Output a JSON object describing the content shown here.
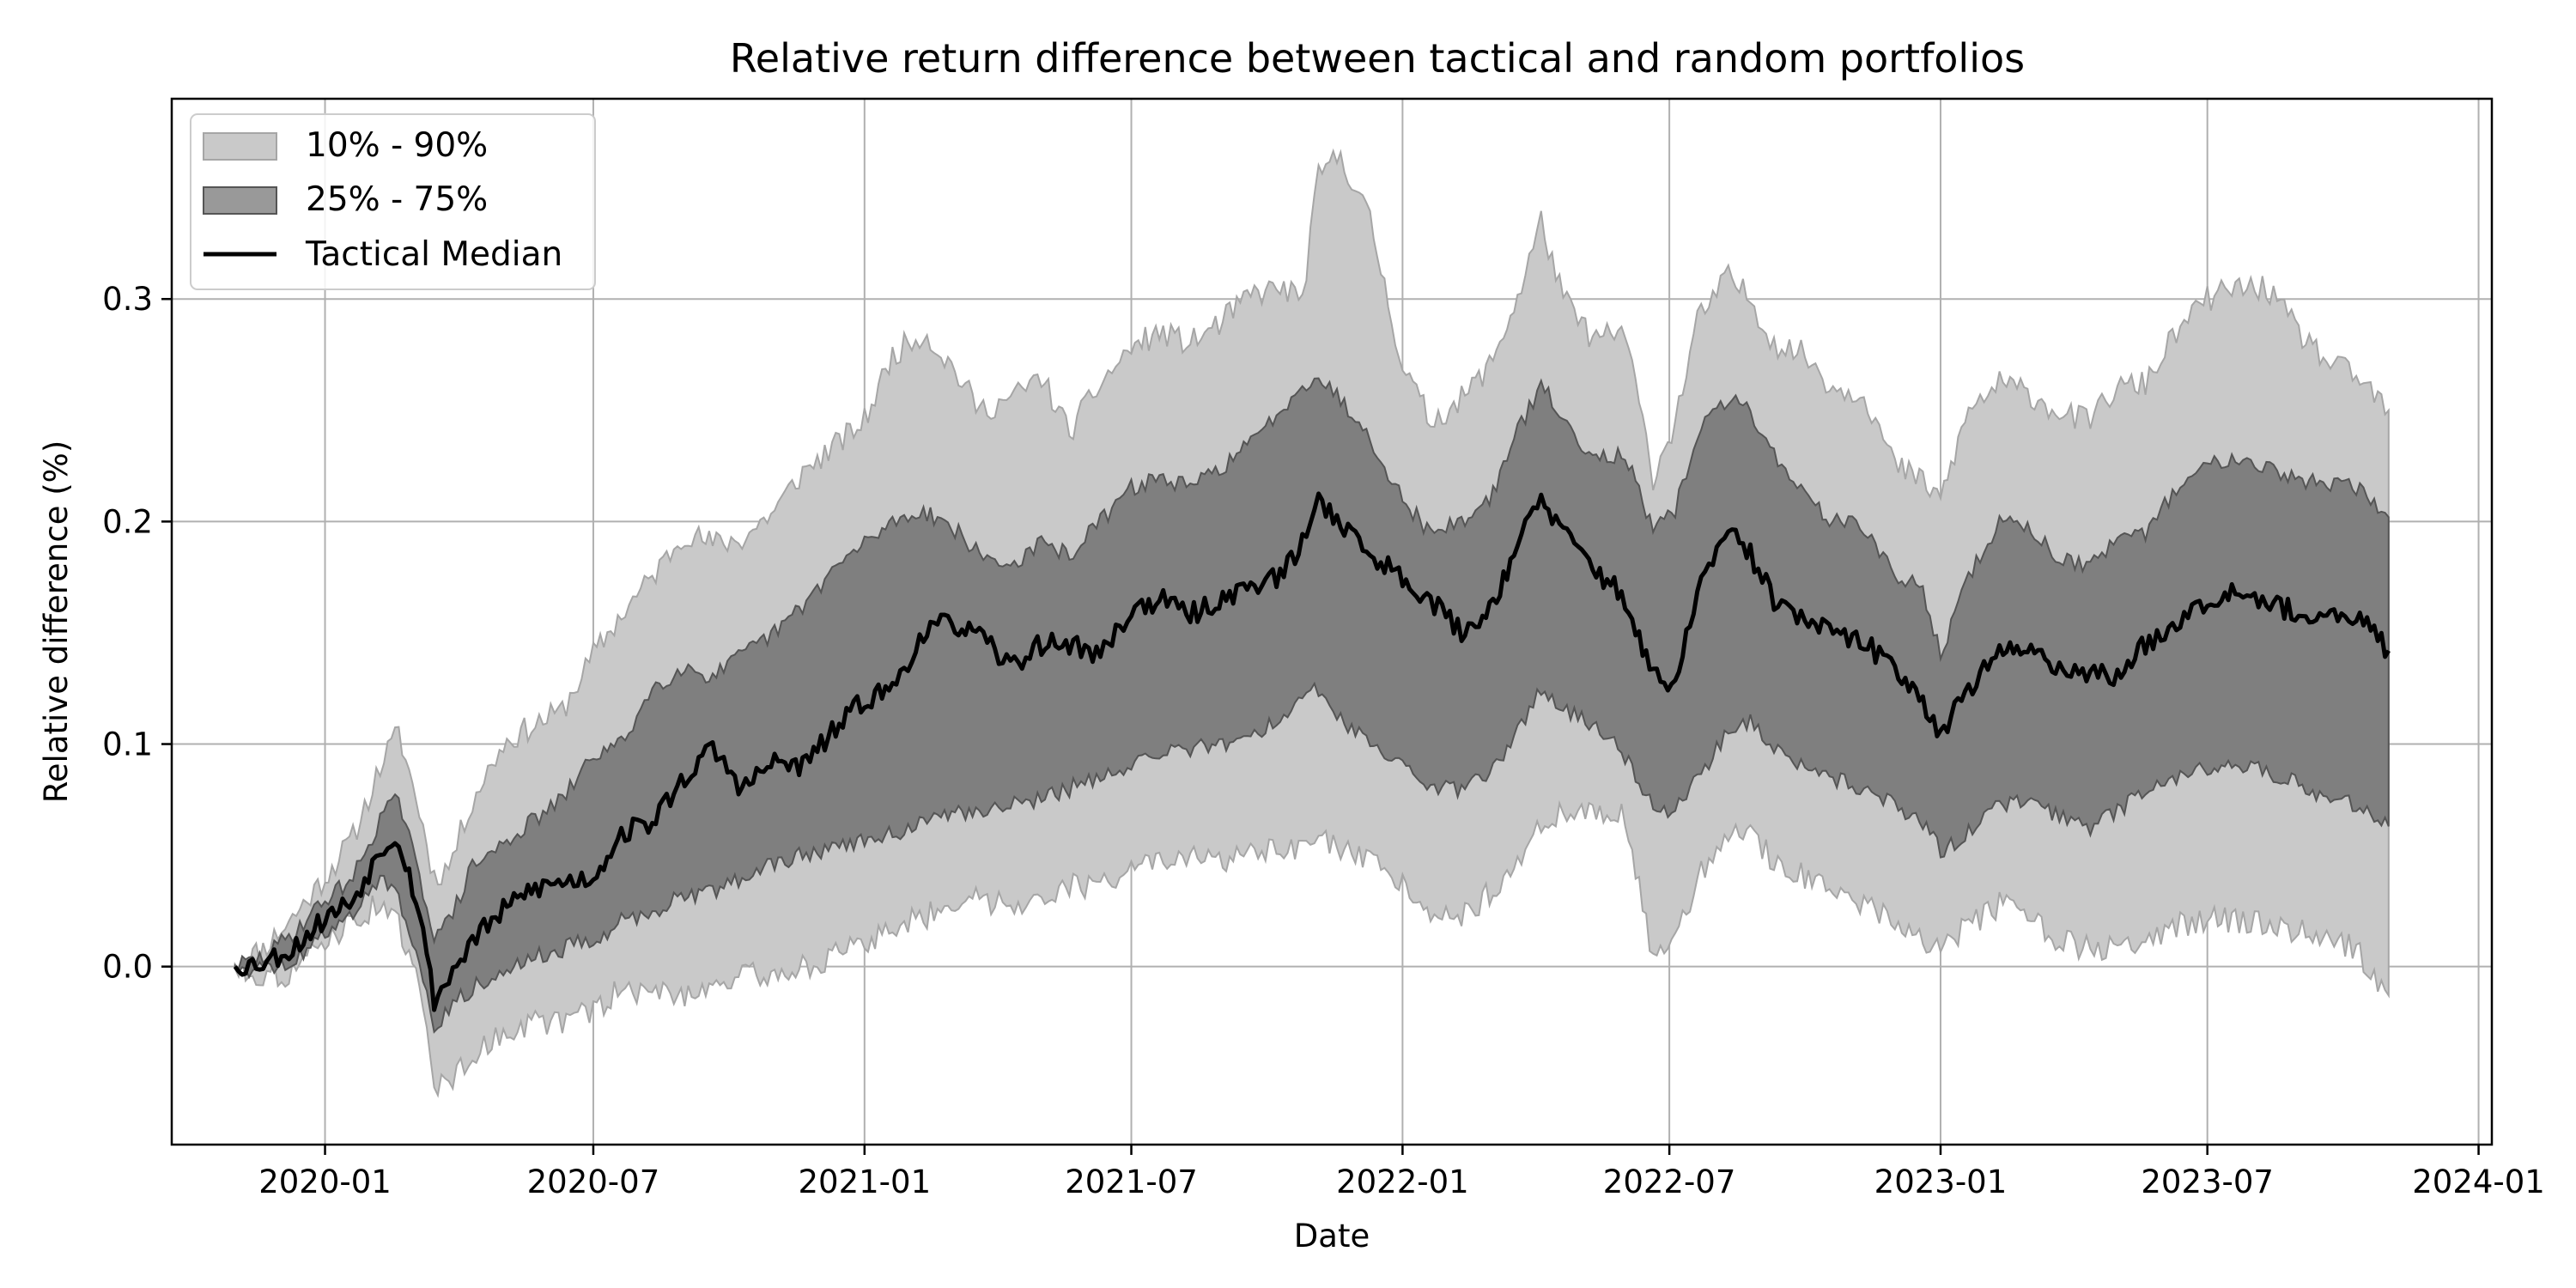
{
  "chart_data": {
    "type": "area",
    "title": "Relative return difference between tactical and random portfolios",
    "xlabel": "Date",
    "ylabel": "Relative difference (%)",
    "x_ticks": [
      "2020-01",
      "2020-07",
      "2021-01",
      "2021-07",
      "2022-01",
      "2022-07",
      "2023-01",
      "2023-07",
      "2024-01"
    ],
    "y_ticks": [
      "0.0",
      "0.1",
      "0.2",
      "0.3"
    ],
    "xlim": [
      "2019-09-19",
      "2024-01-10"
    ],
    "ylim": [
      -0.08,
      0.39
    ],
    "grid": true,
    "legend_position": "top-left",
    "colors": {
      "band_outer": "#c9c9c9",
      "band_outer_edge": "#a6a6a6",
      "band_inner": "#7f7f7f",
      "band_inner_edge": "#555555",
      "median": "#000000",
      "grid": "#b0b0b0"
    },
    "legend": [
      {
        "label": "10% - 90%",
        "kind": "band_outer"
      },
      {
        "label": "25% - 75%",
        "kind": "band_inner"
      },
      {
        "label": "Tactical Median",
        "kind": "line"
      }
    ],
    "series": [
      {
        "name": "10% - 90%",
        "kind": "band",
        "dates": [
          "2019-11-01",
          "2019-11-20",
          "2019-12-10",
          "2020-01-01",
          "2020-01-20",
          "2020-02-10",
          "2020-02-20",
          "2020-03-05",
          "2020-03-15",
          "2020-03-25",
          "2020-04-10",
          "2020-05-01",
          "2020-05-20",
          "2020-06-10",
          "2020-07-01",
          "2020-07-20",
          "2020-08-10",
          "2020-09-01",
          "2020-09-20",
          "2020-10-10",
          "2020-11-01",
          "2020-11-20",
          "2020-12-10",
          "2021-01-01",
          "2021-01-20",
          "2021-02-10",
          "2021-03-01",
          "2021-03-20",
          "2021-04-10",
          "2021-05-01",
          "2021-05-20",
          "2021-06-10",
          "2021-07-01",
          "2021-07-20",
          "2021-08-10",
          "2021-09-01",
          "2021-09-20",
          "2021-10-10",
          "2021-10-25",
          "2021-11-05",
          "2021-11-20",
          "2021-12-10",
          "2022-01-01",
          "2022-01-20",
          "2022-02-10",
          "2022-03-01",
          "2022-03-20",
          "2022-04-05",
          "2022-04-20",
          "2022-05-10",
          "2022-06-01",
          "2022-06-20",
          "2022-07-05",
          "2022-07-20",
          "2022-08-10",
          "2022-08-25",
          "2022-09-10",
          "2022-10-01",
          "2022-10-20",
          "2022-11-10",
          "2022-12-01",
          "2022-12-20",
          "2023-01-01",
          "2023-01-20",
          "2023-02-10",
          "2023-03-01",
          "2023-03-20",
          "2023-04-10",
          "2023-05-01",
          "2023-05-20",
          "2023-06-10",
          "2023-07-01",
          "2023-07-20",
          "2023-08-10",
          "2023-09-01",
          "2023-09-20",
          "2023-10-10",
          "2023-11-01"
        ],
        "upper": [
          0.001,
          0.008,
          0.022,
          0.04,
          0.058,
          0.094,
          0.105,
          0.07,
          0.04,
          0.045,
          0.075,
          0.1,
          0.108,
          0.115,
          0.14,
          0.158,
          0.175,
          0.195,
          0.19,
          0.192,
          0.205,
          0.222,
          0.233,
          0.245,
          0.275,
          0.285,
          0.27,
          0.25,
          0.255,
          0.265,
          0.24,
          0.262,
          0.278,
          0.285,
          0.28,
          0.29,
          0.302,
          0.305,
          0.3,
          0.355,
          0.365,
          0.335,
          0.27,
          0.245,
          0.255,
          0.27,
          0.3,
          0.335,
          0.3,
          0.282,
          0.285,
          0.22,
          0.245,
          0.29,
          0.31,
          0.3,
          0.28,
          0.275,
          0.26,
          0.258,
          0.225,
          0.218,
          0.21,
          0.25,
          0.262,
          0.258,
          0.25,
          0.245,
          0.26,
          0.262,
          0.285,
          0.3,
          0.305,
          0.305,
          0.285,
          0.272,
          0.265,
          0.25
        ],
        "lower": [
          -0.001,
          -0.004,
          -0.003,
          0.012,
          0.02,
          0.03,
          0.018,
          -0.01,
          -0.052,
          -0.052,
          -0.04,
          -0.03,
          -0.025,
          -0.025,
          -0.02,
          -0.01,
          -0.012,
          -0.012,
          -0.008,
          -0.004,
          -0.004,
          0.0,
          0.004,
          0.01,
          0.018,
          0.022,
          0.03,
          0.03,
          0.028,
          0.032,
          0.036,
          0.036,
          0.046,
          0.046,
          0.048,
          0.048,
          0.05,
          0.052,
          0.052,
          0.058,
          0.052,
          0.046,
          0.038,
          0.026,
          0.022,
          0.033,
          0.048,
          0.062,
          0.07,
          0.07,
          0.068,
          0.002,
          0.01,
          0.04,
          0.06,
          0.06,
          0.048,
          0.04,
          0.032,
          0.028,
          0.022,
          0.012,
          0.008,
          0.018,
          0.028,
          0.022,
          0.012,
          0.008,
          0.008,
          0.012,
          0.018,
          0.022,
          0.02,
          0.02,
          0.016,
          0.012,
          0.008,
          -0.013
        ]
      },
      {
        "name": "25% - 75%",
        "kind": "band",
        "dates": [
          "2019-11-01",
          "2019-11-20",
          "2019-12-10",
          "2020-01-01",
          "2020-01-20",
          "2020-02-10",
          "2020-02-20",
          "2020-03-05",
          "2020-03-15",
          "2020-03-25",
          "2020-04-10",
          "2020-05-01",
          "2020-05-20",
          "2020-06-10",
          "2020-07-01",
          "2020-07-20",
          "2020-08-10",
          "2020-09-01",
          "2020-09-20",
          "2020-10-10",
          "2020-11-01",
          "2020-11-20",
          "2020-12-10",
          "2021-01-01",
          "2021-01-20",
          "2021-02-10",
          "2021-03-01",
          "2021-03-20",
          "2021-04-10",
          "2021-05-01",
          "2021-05-20",
          "2021-06-10",
          "2021-07-01",
          "2021-07-20",
          "2021-08-10",
          "2021-09-01",
          "2021-09-20",
          "2021-10-10",
          "2021-10-25",
          "2021-11-05",
          "2021-11-20",
          "2021-12-10",
          "2022-01-01",
          "2022-01-20",
          "2022-02-10",
          "2022-03-01",
          "2022-03-20",
          "2022-04-05",
          "2022-04-20",
          "2022-05-10",
          "2022-06-01",
          "2022-06-20",
          "2022-07-05",
          "2022-07-20",
          "2022-08-10",
          "2022-08-25",
          "2022-09-10",
          "2022-10-01",
          "2022-10-20",
          "2022-11-10",
          "2022-12-01",
          "2022-12-20",
          "2023-01-01",
          "2023-01-20",
          "2023-02-10",
          "2023-03-01",
          "2023-03-20",
          "2023-04-10",
          "2023-05-01",
          "2023-05-20",
          "2023-06-10",
          "2023-07-01",
          "2023-07-20",
          "2023-08-10",
          "2023-09-01",
          "2023-09-20",
          "2023-10-10",
          "2023-11-01"
        ],
        "upper": [
          0.0005,
          0.004,
          0.015,
          0.03,
          0.04,
          0.07,
          0.075,
          0.04,
          0.015,
          0.02,
          0.045,
          0.055,
          0.065,
          0.075,
          0.095,
          0.1,
          0.125,
          0.135,
          0.13,
          0.14,
          0.15,
          0.162,
          0.178,
          0.19,
          0.2,
          0.205,
          0.198,
          0.185,
          0.18,
          0.19,
          0.185,
          0.2,
          0.215,
          0.22,
          0.215,
          0.225,
          0.235,
          0.25,
          0.262,
          0.265,
          0.255,
          0.238,
          0.21,
          0.195,
          0.2,
          0.21,
          0.24,
          0.262,
          0.245,
          0.23,
          0.23,
          0.195,
          0.205,
          0.24,
          0.255,
          0.25,
          0.23,
          0.212,
          0.2,
          0.198,
          0.175,
          0.17,
          0.14,
          0.175,
          0.2,
          0.198,
          0.185,
          0.18,
          0.19,
          0.195,
          0.215,
          0.225,
          0.23,
          0.225,
          0.218,
          0.218,
          0.215,
          0.202
        ],
        "lower": [
          -0.0005,
          -0.001,
          0.002,
          0.015,
          0.025,
          0.04,
          0.03,
          0.005,
          -0.03,
          -0.018,
          -0.01,
          0.0,
          0.004,
          0.008,
          0.012,
          0.02,
          0.025,
          0.032,
          0.034,
          0.04,
          0.046,
          0.05,
          0.054,
          0.056,
          0.06,
          0.064,
          0.068,
          0.07,
          0.072,
          0.076,
          0.08,
          0.085,
          0.09,
          0.095,
          0.098,
          0.1,
          0.104,
          0.11,
          0.12,
          0.125,
          0.112,
          0.1,
          0.09,
          0.082,
          0.078,
          0.088,
          0.105,
          0.125,
          0.115,
          0.108,
          0.095,
          0.072,
          0.07,
          0.085,
          0.105,
          0.11,
          0.098,
          0.09,
          0.085,
          0.08,
          0.072,
          0.065,
          0.052,
          0.06,
          0.072,
          0.075,
          0.068,
          0.062,
          0.07,
          0.078,
          0.085,
          0.09,
          0.092,
          0.088,
          0.082,
          0.076,
          0.072,
          0.063
        ]
      },
      {
        "name": "Tactical Median",
        "kind": "line",
        "dates": [
          "2019-11-01",
          "2019-11-20",
          "2019-12-10",
          "2020-01-01",
          "2020-01-20",
          "2020-02-10",
          "2020-02-20",
          "2020-03-05",
          "2020-03-15",
          "2020-03-25",
          "2020-04-10",
          "2020-05-01",
          "2020-05-20",
          "2020-06-10",
          "2020-07-01",
          "2020-07-20",
          "2020-08-10",
          "2020-09-01",
          "2020-09-20",
          "2020-10-10",
          "2020-11-01",
          "2020-11-20",
          "2020-12-10",
          "2021-01-01",
          "2021-01-20",
          "2021-02-10",
          "2021-03-01",
          "2021-03-20",
          "2021-04-10",
          "2021-05-01",
          "2021-05-20",
          "2021-06-10",
          "2021-07-01",
          "2021-07-20",
          "2021-08-10",
          "2021-09-01",
          "2021-09-20",
          "2021-10-10",
          "2021-10-25",
          "2021-11-05",
          "2021-11-20",
          "2021-12-10",
          "2022-01-01",
          "2022-01-20",
          "2022-02-10",
          "2022-03-01",
          "2022-03-20",
          "2022-04-05",
          "2022-04-20",
          "2022-05-10",
          "2022-06-01",
          "2022-06-20",
          "2022-07-05",
          "2022-07-20",
          "2022-08-10",
          "2022-08-25",
          "2022-09-10",
          "2022-10-01",
          "2022-10-20",
          "2022-11-10",
          "2022-12-01",
          "2022-12-20",
          "2023-01-01",
          "2023-01-20",
          "2023-02-10",
          "2023-03-01",
          "2023-03-20",
          "2023-04-10",
          "2023-05-01",
          "2023-05-20",
          "2023-06-10",
          "2023-07-01",
          "2023-07-20",
          "2023-08-10",
          "2023-09-01",
          "2023-09-20",
          "2023-10-10",
          "2023-11-01"
        ],
        "values": [
          0.0,
          0.002,
          0.008,
          0.022,
          0.03,
          0.055,
          0.058,
          0.025,
          -0.015,
          -0.005,
          0.012,
          0.025,
          0.035,
          0.038,
          0.04,
          0.06,
          0.065,
          0.085,
          0.098,
          0.08,
          0.092,
          0.09,
          0.105,
          0.12,
          0.125,
          0.15,
          0.155,
          0.148,
          0.135,
          0.145,
          0.145,
          0.14,
          0.16,
          0.165,
          0.158,
          0.165,
          0.172,
          0.175,
          0.19,
          0.21,
          0.2,
          0.185,
          0.175,
          0.165,
          0.15,
          0.16,
          0.19,
          0.21,
          0.195,
          0.18,
          0.165,
          0.13,
          0.125,
          0.17,
          0.195,
          0.185,
          0.165,
          0.155,
          0.15,
          0.145,
          0.135,
          0.12,
          0.105,
          0.125,
          0.14,
          0.145,
          0.135,
          0.132,
          0.13,
          0.145,
          0.155,
          0.165,
          0.17,
          0.165,
          0.158,
          0.155,
          0.158,
          0.142
        ]
      }
    ]
  }
}
